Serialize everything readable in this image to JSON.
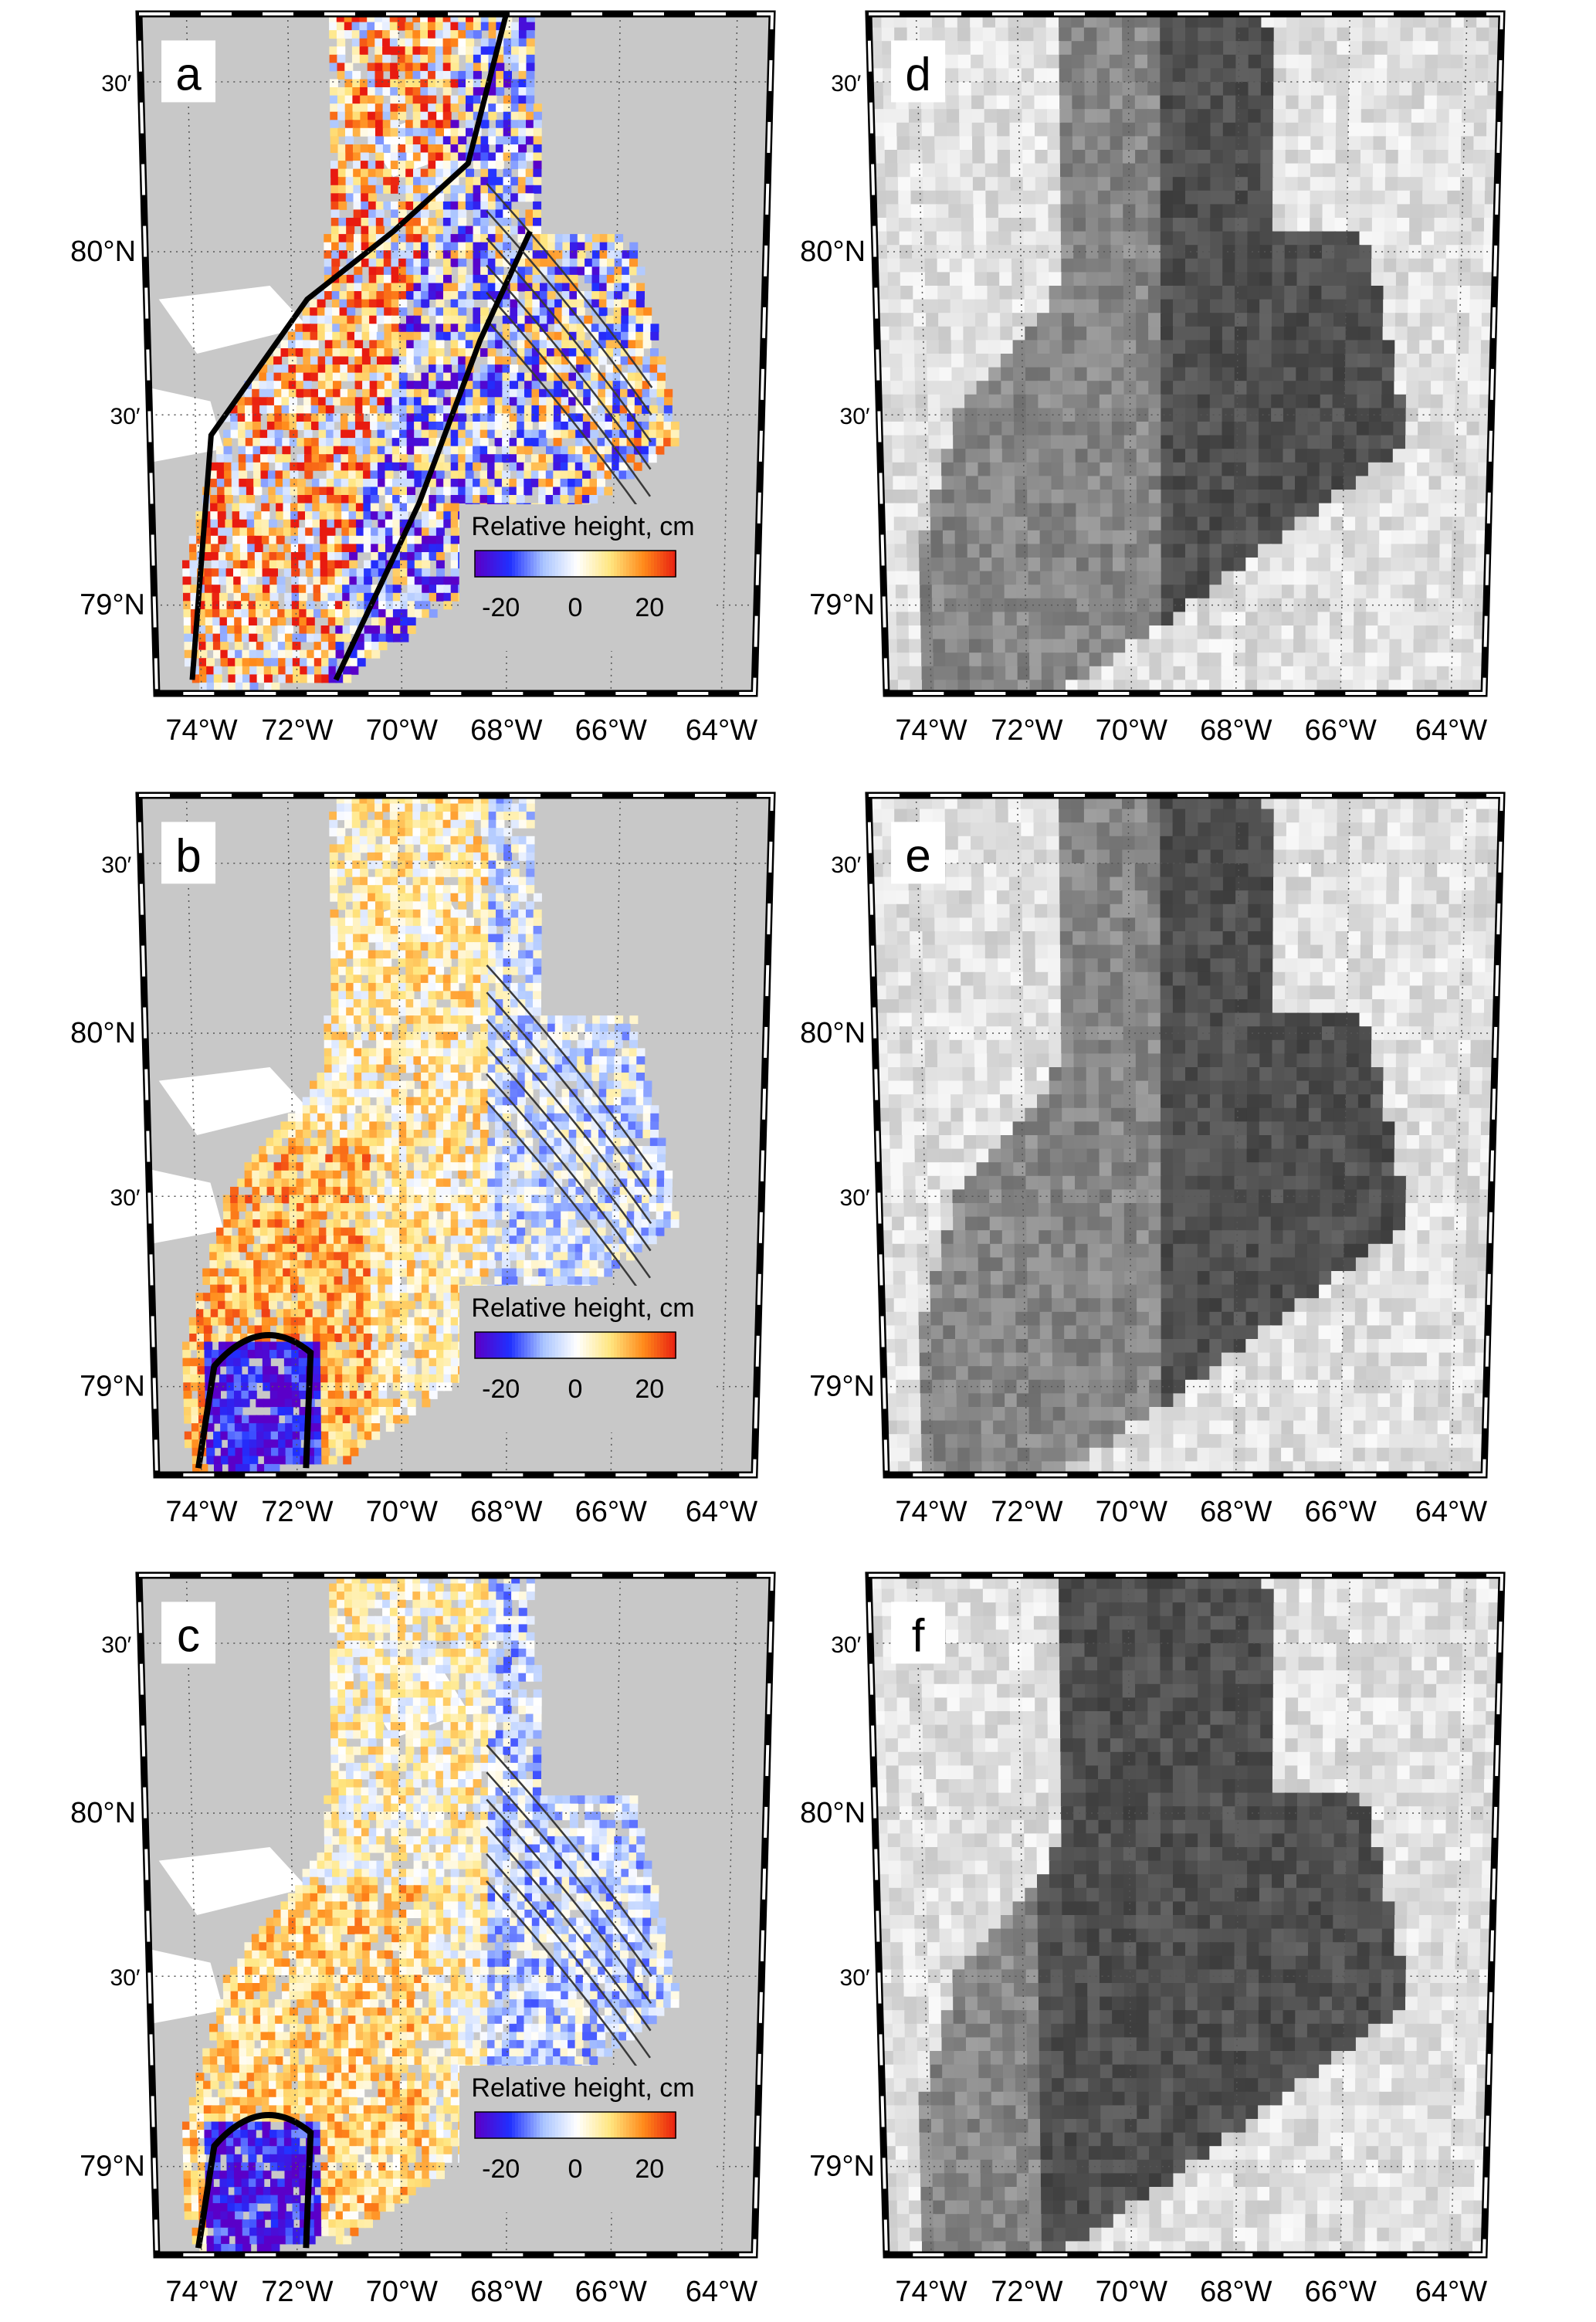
{
  "panels": [
    {
      "id": "a",
      "letter": "a",
      "kind": "height",
      "has_thick_contour": true,
      "blob": "none"
    },
    {
      "id": "b",
      "letter": "b",
      "kind": "height",
      "has_thick_contour": true,
      "blob": "low"
    },
    {
      "id": "c",
      "letter": "c",
      "kind": "height",
      "has_thick_contour": true,
      "blob": "low"
    },
    {
      "id": "d",
      "letter": "d",
      "kind": "image",
      "tone": "light"
    },
    {
      "id": "e",
      "letter": "e",
      "kind": "image",
      "tone": "light"
    },
    {
      "id": "f",
      "letter": "f",
      "kind": "image",
      "tone": "dark"
    }
  ],
  "axes": {
    "lon_labels": [
      "74°W",
      "72°W",
      "70°W",
      "68°W",
      "66°W",
      "64°W"
    ],
    "lon_values": [
      -74,
      -72,
      -70,
      -68,
      -66,
      -64
    ],
    "lat_labels": [
      "30′",
      "80°N",
      "30′",
      "79°N"
    ],
    "lat_values": [
      80.5,
      80.0,
      79.5,
      79.0
    ]
  },
  "colorbar": {
    "title": "Relative height, cm",
    "ticks": [
      "-20",
      "0",
      "20"
    ],
    "tick_values": [
      -20,
      0,
      20
    ],
    "range": [
      -27,
      27
    ],
    "colors": [
      "#5a00c8",
      "#2030ff",
      "#a9c4ff",
      "#ffffff",
      "#ffe680",
      "#ff8a1a",
      "#e81a10"
    ]
  },
  "colors": {
    "land": "#c8c8c8",
    "ocean_gap": "#ffffff",
    "frame": "#000000",
    "grid": "#555555",
    "contour": "#3a3a3a"
  }
}
